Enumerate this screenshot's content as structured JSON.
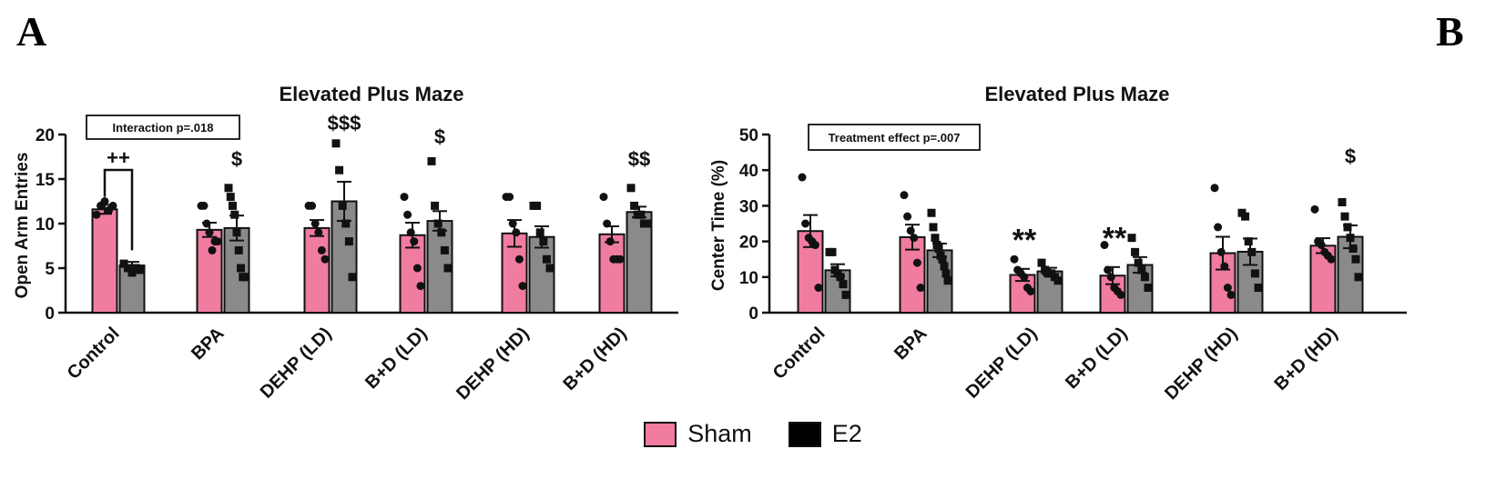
{
  "figure": {
    "panels": [
      "A",
      "B"
    ],
    "legend": [
      {
        "label": "Sham",
        "color": "#f07ca0"
      },
      {
        "label": "E2",
        "color": "#000000"
      }
    ],
    "colors": {
      "sham": "#f07ca0",
      "e2_bar": "#8a8a8a",
      "axis": "#111111"
    }
  },
  "chart_data": [
    {
      "type": "bar",
      "panel": "A",
      "title": "Elevated Plus Maze",
      "ylabel": "Open Arm Entries",
      "xlabel": "",
      "ylim": [
        0,
        20
      ],
      "yticks": [
        0,
        5,
        10,
        15,
        20
      ],
      "categories": [
        "Control",
        "BPA",
        "DEHP (LD)",
        "B+D (LD)",
        "DEHP (HD)",
        "B+D (HD)"
      ],
      "series": [
        {
          "name": "Sham",
          "values": [
            11.6,
            9.3,
            9.5,
            8.7,
            8.9,
            8.8
          ],
          "sem": [
            0.5,
            0.8,
            0.9,
            1.4,
            1.5,
            0.9
          ],
          "points": [
            [
              11,
              12,
              12.5,
              11.5,
              12
            ],
            [
              12,
              12,
              10,
              9,
              7,
              8,
              8
            ],
            [
              12,
              12,
              10,
              9,
              7,
              6
            ],
            [
              13,
              11,
              9,
              8,
              5,
              3
            ],
            [
              13,
              13,
              10,
              9,
              6,
              3
            ],
            [
              13,
              10,
              8,
              6,
              6,
              6
            ]
          ]
        },
        {
          "name": "E2",
          "values": [
            5.3,
            9.5,
            12.5,
            10.3,
            8.5,
            11.3
          ],
          "sem": [
            0.4,
            1.4,
            2.2,
            1.1,
            1.2,
            0.6
          ],
          "points": [
            [
              5.5,
              5,
              4.5,
              5,
              4.8
            ],
            [
              14,
              13,
              12,
              11,
              9,
              7,
              5,
              4,
              4
            ],
            [
              19,
              16,
              12,
              10,
              8,
              4
            ],
            [
              17,
              12,
              10,
              9,
              7,
              5
            ],
            [
              12,
              12,
              9,
              8,
              6,
              5
            ],
            [
              14,
              12,
              11,
              11,
              10,
              10
            ]
          ]
        }
      ],
      "annotations": [
        {
          "text": "Interaction p=.018",
          "kind": "box"
        },
        {
          "text": "++",
          "kind": "bracket",
          "category": "Control"
        },
        {
          "text": "$",
          "category": "BPA",
          "series": "E2",
          "y": 16.5
        },
        {
          "text": "$$$",
          "category": "DEHP (LD)",
          "series": "E2",
          "y": 20.5
        },
        {
          "text": "$",
          "category": "B+D (LD)",
          "series": "E2",
          "y": 19
        },
        {
          "text": "$$",
          "category": "B+D (HD)",
          "series": "E2",
          "y": 16.5
        }
      ]
    },
    {
      "type": "bar",
      "panel": "B",
      "title": "Elevated Plus Maze",
      "ylabel": "Center Time (%)",
      "xlabel": "",
      "ylim": [
        0,
        50
      ],
      "yticks": [
        0,
        10,
        20,
        30,
        40,
        50
      ],
      "categories": [
        "Control",
        "BPA",
        "DEHP (LD)",
        "B+D (LD)",
        "DEHP (HD)",
        "B+D (HD)"
      ],
      "series": [
        {
          "name": "Sham",
          "values": [
            22.9,
            21.2,
            10.6,
            10.4,
            16.7,
            18.8
          ],
          "sem": [
            4.5,
            3.5,
            1.7,
            2.4,
            4.6,
            2.1
          ],
          "points": [
            [
              38,
              25,
              21,
              20,
              19,
              7
            ],
            [
              33,
              27,
              23,
              21,
              14,
              7
            ],
            [
              15,
              12,
              11,
              10,
              7,
              6
            ],
            [
              19,
              12,
              10,
              7,
              6,
              5
            ],
            [
              35,
              24,
              17,
              13,
              7,
              5
            ],
            [
              29,
              20,
              19,
              17,
              16,
              15
            ]
          ]
        },
        {
          "name": "E2",
          "values": [
            11.9,
            17.5,
            11.6,
            13.4,
            17.1,
            21.3
          ],
          "sem": [
            1.7,
            1.9,
            1.0,
            2.2,
            3.7,
            3.2
          ],
          "points": [
            [
              17,
              17,
              12,
              11,
              10,
              8,
              5
            ],
            [
              28,
              24,
              21,
              19,
              18,
              16,
              15,
              13,
              11,
              9
            ],
            [
              14,
              12,
              11,
              11,
              10,
              9
            ],
            [
              21,
              17,
              14,
              12,
              10,
              7
            ],
            [
              28,
              27,
              20,
              17,
              11,
              7
            ],
            [
              31,
              27,
              24,
              21,
              18,
              15,
              10
            ]
          ]
        }
      ],
      "annotations": [
        {
          "text": "Treatment effect p=.007",
          "kind": "box"
        },
        {
          "text": "**",
          "category": "DEHP (LD)",
          "series": "Sham",
          "y": 20.5
        },
        {
          "text": "**",
          "category": "B+D (LD)",
          "series": "Sham",
          "y": 21
        },
        {
          "text": "$",
          "category": "B+D (HD)",
          "series": "E2",
          "y": 42
        }
      ]
    }
  ]
}
